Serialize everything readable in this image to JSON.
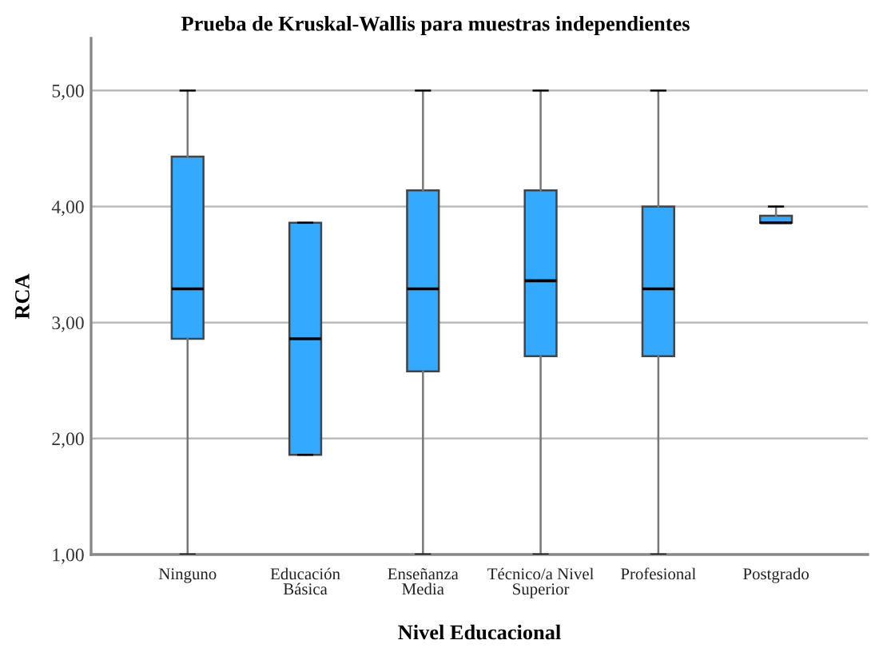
{
  "chart_data": {
    "type": "box",
    "title": "Prueba de Kruskal-Wallis para muestras independientes",
    "xlabel": "Nivel Educacional",
    "ylabel": "RCA",
    "categories": [
      "Ninguno",
      "Educación\nBásica",
      "Enseñanza\nMedia",
      "Técnico/a Nivel\nSuperior",
      "Profesional",
      "Postgrado"
    ],
    "series": [
      {
        "color": "#33aaff",
        "boxes": [
          {
            "low": 1.0,
            "q1": 2.86,
            "median": 3.29,
            "q3": 4.43,
            "high": 5.0
          },
          {
            "low": 1.86,
            "q1": 1.86,
            "median": 2.86,
            "q3": 3.86,
            "high": 3.86
          },
          {
            "low": 1.0,
            "q1": 2.58,
            "median": 3.29,
            "q3": 4.14,
            "high": 5.0
          },
          {
            "low": 1.0,
            "q1": 2.71,
            "median": 3.36,
            "q3": 4.14,
            "high": 5.0
          },
          {
            "low": 1.0,
            "q1": 2.71,
            "median": 3.29,
            "q3": 4.0,
            "high": 5.0
          },
          {
            "low": 3.86,
            "q1": 3.86,
            "median": 3.86,
            "q3": 3.92,
            "high": 4.0
          }
        ]
      }
    ],
    "ylim": [
      1,
      5.45
    ],
    "yticks": [
      {
        "value": 1,
        "label": "1,00"
      },
      {
        "value": 2,
        "label": "2,00"
      },
      {
        "value": 3,
        "label": "3,00"
      },
      {
        "value": 4,
        "label": "4,00"
      },
      {
        "value": 5,
        "label": "5,00"
      }
    ],
    "grid": "y"
  }
}
